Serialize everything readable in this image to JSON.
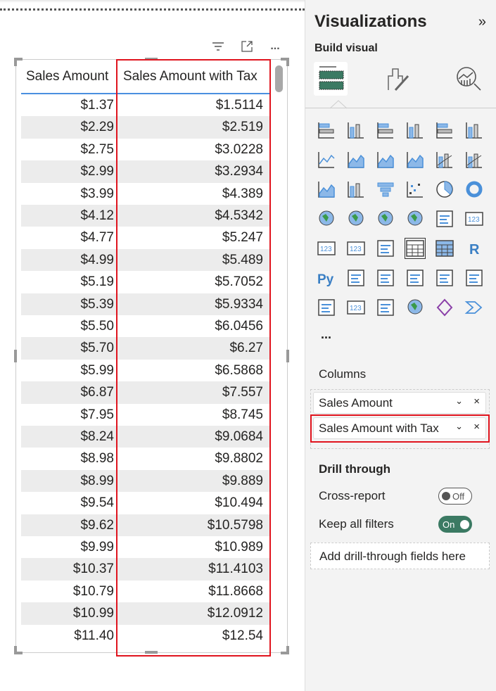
{
  "table": {
    "headers": [
      "Sales Amount",
      "Sales Amount with Tax"
    ],
    "rows": [
      [
        "$1.37",
        "$1.5114"
      ],
      [
        "$2.29",
        "$2.519"
      ],
      [
        "$2.75",
        "$3.0228"
      ],
      [
        "$2.99",
        "$3.2934"
      ],
      [
        "$3.99",
        "$4.389"
      ],
      [
        "$4.12",
        "$4.5342"
      ],
      [
        "$4.77",
        "$5.247"
      ],
      [
        "$4.99",
        "$5.489"
      ],
      [
        "$5.19",
        "$5.7052"
      ],
      [
        "$5.39",
        "$5.9334"
      ],
      [
        "$5.50",
        "$6.0456"
      ],
      [
        "$5.70",
        "$6.27"
      ],
      [
        "$5.99",
        "$6.5868"
      ],
      [
        "$6.87",
        "$7.557"
      ],
      [
        "$7.95",
        "$8.745"
      ],
      [
        "$8.24",
        "$9.0684"
      ],
      [
        "$8.98",
        "$9.8802"
      ],
      [
        "$8.99",
        "$9.889"
      ],
      [
        "$9.54",
        "$10.494"
      ],
      [
        "$9.62",
        "$10.5798"
      ],
      [
        "$9.99",
        "$10.989"
      ],
      [
        "$10.37",
        "$11.4103"
      ],
      [
        "$10.79",
        "$11.8668"
      ],
      [
        "$10.99",
        "$12.0912"
      ],
      [
        "$11.40",
        "$12.54"
      ]
    ]
  },
  "visual_toolbar": {
    "filter": "filter-icon",
    "focus": "focus-mode-icon",
    "more": "..."
  },
  "panel": {
    "title": "Visualizations",
    "collapse": "»",
    "build_visual": "Build visual",
    "tabs": [
      "build-visual-icon",
      "format-visual-icon",
      "analytics-icon"
    ],
    "viz_icons": [
      "stacked-bar",
      "stacked-column",
      "clustered-bar",
      "clustered-column",
      "100-stacked-bar",
      "100-stacked-column",
      "line",
      "area",
      "stacked-area",
      "100-stacked-area",
      "line-stacked-column",
      "line-clustered-column",
      "ribbon",
      "waterfall",
      "funnel",
      "scatter",
      "pie",
      "donut",
      "treemap",
      "map",
      "filled-map",
      "azure-map",
      "gauge",
      "card",
      "multi-row-card",
      "kpi",
      "slicer",
      "table",
      "matrix",
      "r-visual",
      "python-visual",
      "key-influencers",
      "decomposition-tree",
      "qa",
      "smart-narrative",
      "metrics",
      "paginated-report",
      "power-apps-card",
      "power-apps-slicer",
      "arcgis-map",
      "power-apps",
      "power-automate"
    ],
    "more": "...",
    "columns_label": "Columns",
    "fields": [
      "Sales Amount",
      "Sales Amount with Tax"
    ],
    "drill_through": "Drill through",
    "cross_report": {
      "label": "Cross-report",
      "state": "Off"
    },
    "keep_filters": {
      "label": "Keep all filters",
      "state": "On"
    },
    "add_drill": "Add drill-through fields here",
    "accent": "#3b7a63"
  }
}
